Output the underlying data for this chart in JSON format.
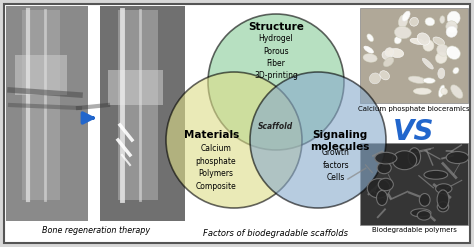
{
  "bg_color": "#d8d8d8",
  "inner_bg": "#ffffff",
  "border_color": "#555555",
  "title_bottom_left": "Bone regeneration therapy",
  "title_bottom_middle": "Factors of biodegradable scaffolds",
  "arrow_color": "#2266cc",
  "venn": {
    "circle_top_color": "#88cc99",
    "circle_left_color": "#dddd88",
    "circle_right_color": "#88aacc",
    "circle_alpha": 0.6,
    "top_label": "Structure",
    "top_items": "Hydrogel\nPorous\nFiber\n3D-printing",
    "left_label": "Materials",
    "left_items": "Calcium\nphosphate\nPolymers\nComposite",
    "right_label": "Signaling\nmolecules",
    "right_items": "Growth\nfactors\nCells",
    "center_label": "Scaffold"
  },
  "vs_color": "#2266cc",
  "right_top_caption": "Calcium phosphate bioceramics",
  "right_bottom_caption": "Biodegradable polymers",
  "xray_left_color": "#aaaaaa",
  "xray_right_color": "#888888"
}
